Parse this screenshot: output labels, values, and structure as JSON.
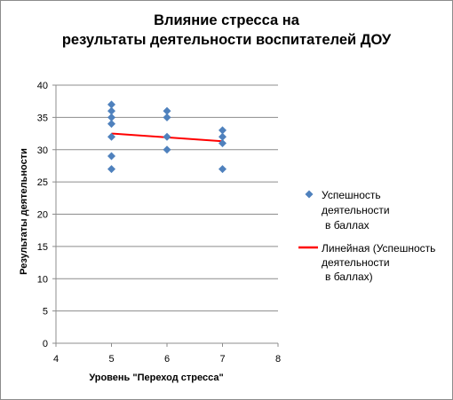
{
  "chart_data": {
    "type": "scatter",
    "title_lines": [
      "Влияние стресса на",
      "результаты деятельности воспитателей ДОУ"
    ],
    "xlabel": "Уровень \"Переход стресса\"",
    "ylabel": "Результаты деятельности",
    "xlim": [
      4,
      8
    ],
    "ylim": [
      0,
      40
    ],
    "xticks": [
      "4",
      "5",
      "6",
      "7",
      "8"
    ],
    "yticks": [
      "0",
      "5",
      "10",
      "15",
      "20",
      "25",
      "30",
      "35",
      "40"
    ],
    "grid": "horizontal",
    "legend_position": "right",
    "series": [
      {
        "name_lines": [
          "Успешность",
          "деятельности",
          "в баллах"
        ],
        "marker": "diamond",
        "color": "#4f81bd",
        "points": [
          [
            5,
            37
          ],
          [
            5,
            36
          ],
          [
            5,
            35
          ],
          [
            5,
            34
          ],
          [
            5,
            32
          ],
          [
            5,
            29
          ],
          [
            5,
            27
          ],
          [
            6,
            36
          ],
          [
            6,
            35
          ],
          [
            6,
            32
          ],
          [
            6,
            30
          ],
          [
            7,
            33
          ],
          [
            7,
            32
          ],
          [
            7,
            31
          ],
          [
            7,
            27
          ]
        ]
      }
    ],
    "trendline": {
      "name_lines": [
        "Линейная (Успешность",
        "деятельности",
        "в баллах)"
      ],
      "color": "#ff0000",
      "from": [
        5,
        32.5
      ],
      "to": [
        7,
        31.3
      ]
    }
  }
}
